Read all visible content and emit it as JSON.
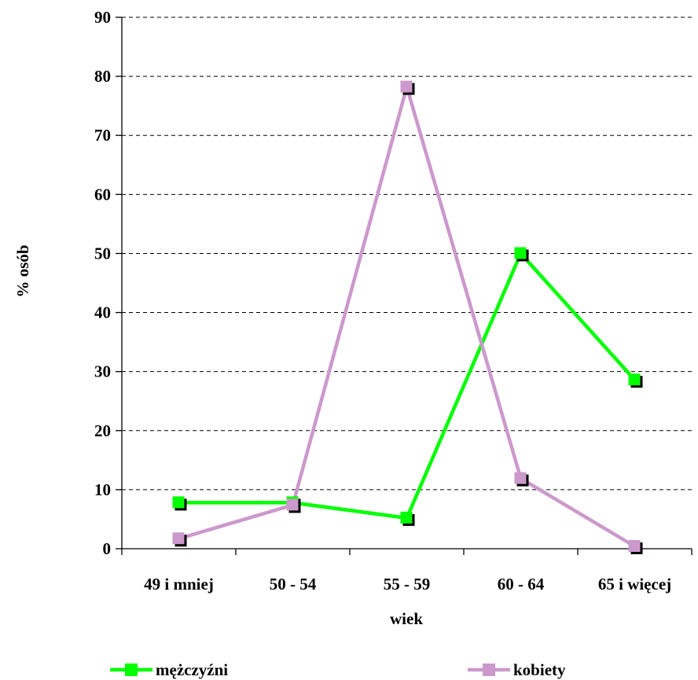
{
  "chart_data": {
    "type": "line",
    "categories": [
      "49 i mniej",
      "50 - 54",
      "55 - 59",
      "60 - 64",
      "65 i więcej"
    ],
    "series": [
      {
        "name": "mężczyźni",
        "values": [
          7.8,
          7.8,
          5.2,
          50.0,
          28.6
        ],
        "color": "#00ff00"
      },
      {
        "name": "kobiety",
        "values": [
          1.7,
          7.4,
          78.2,
          11.9,
          0.4
        ],
        "color": "#cc99cc"
      }
    ],
    "xlabel": "wiek",
    "ylabel": "% osób",
    "ylim": [
      0,
      90
    ],
    "yticks": [
      0,
      10,
      20,
      30,
      40,
      50,
      60,
      70,
      80,
      90
    ],
    "grid": true,
    "legend_position": "bottom"
  }
}
